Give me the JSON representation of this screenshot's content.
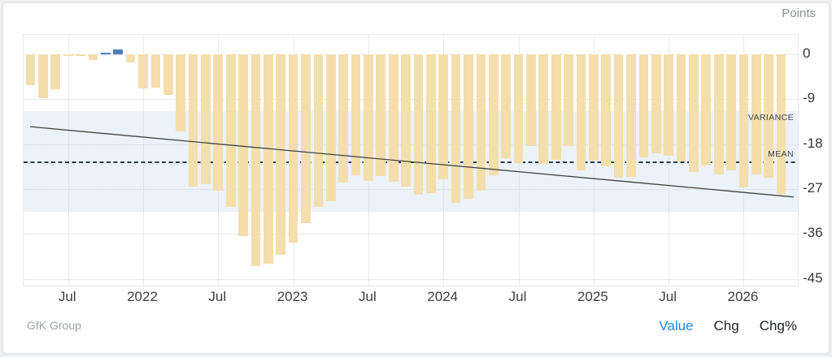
{
  "header": {
    "unit_label": "Points"
  },
  "footer": {
    "source": "GfK Group",
    "views": [
      {
        "label": "Value",
        "active": true
      },
      {
        "label": "Chg",
        "active": false
      },
      {
        "label": "Chg%",
        "active": false
      }
    ]
  },
  "colors": {
    "bar_negative": "#f4deac",
    "bar_positive": "#4d80bd",
    "variance_band": "#ebf2f9",
    "mean_line": "#2b3a50",
    "trend_line": "#424242",
    "active_view_blue": "#1e87f0",
    "axis_text": "#33363a",
    "muted_text": "#8d9093"
  },
  "chart_data": {
    "type": "bar",
    "title": "",
    "unit": "Points",
    "x": [
      "Apr 2021",
      "May 2021",
      "Jun 2021",
      "Jul 2021",
      "Aug 2021",
      "Sep 2021",
      "Oct 2021",
      "Nov 2021",
      "Dec 2021",
      "Jan 2022",
      "Feb 2022",
      "Mar 2022",
      "Apr 2022",
      "May 2022",
      "Jun 2022",
      "Jul 2022",
      "Aug 2022",
      "Sep 2022",
      "Oct 2022",
      "Nov 2022",
      "Dec 2022",
      "Jan 2023",
      "Feb 2023",
      "Mar 2023",
      "Apr 2023",
      "May 2023",
      "Jun 2023",
      "Jul 2023",
      "Aug 2023",
      "Sep 2023",
      "Oct 2023",
      "Nov 2023",
      "Dec 2023",
      "Jan 2024",
      "Feb 2024",
      "Mar 2024",
      "Apr 2024",
      "May 2024",
      "Jun 2024",
      "Jul 2024",
      "Aug 2024",
      "Sep 2024",
      "Oct 2024",
      "Nov 2024",
      "Dec 2024",
      "Jan 2025",
      "Feb 2025",
      "Mar 2025",
      "Apr 2025",
      "May 2025",
      "Jun 2025",
      "Jul 2025",
      "Aug 2025",
      "Sep 2025",
      "Oct 2025",
      "Nov 2025",
      "Dec 2025",
      "Jan 2026",
      "Feb 2026",
      "Mar 2026",
      "Apr 2026"
    ],
    "values": [
      -6.1,
      -8.8,
      -7.0,
      -0.3,
      -0.4,
      -1.2,
      0.3,
      0.9,
      -1.6,
      -6.8,
      -6.7,
      -8.1,
      -15.5,
      -26.5,
      -26.0,
      -27.4,
      -30.6,
      -36.5,
      -42.5,
      -41.9,
      -40.2,
      -37.8,
      -33.9,
      -30.5,
      -29.5,
      -25.7,
      -24.2,
      -25.4,
      -24.4,
      -25.6,
      -26.5,
      -28.1,
      -27.8,
      -25.1,
      -29.7,
      -29.0,
      -27.4,
      -24.2,
      -20.9,
      -21.8,
      -18.4,
      -22.0,
      -21.2,
      -18.3,
      -23.3,
      -21.3,
      -22.4,
      -24.7,
      -24.5,
      -20.6,
      -19.9,
      -20.3,
      -21.5,
      -23.6,
      -22.3,
      -24.1,
      -23.2,
      -26.7,
      -24.1,
      -24.8,
      -27.9
    ],
    "x_tick_labels": [
      {
        "label": "Jul",
        "index": 3
      },
      {
        "label": "2022",
        "index": 9
      },
      {
        "label": "Jul",
        "index": 15
      },
      {
        "label": "2023",
        "index": 21
      },
      {
        "label": "Jul",
        "index": 27
      },
      {
        "label": "2024",
        "index": 33
      },
      {
        "label": "Jul",
        "index": 39
      },
      {
        "label": "2025",
        "index": 45
      },
      {
        "label": "Jul",
        "index": 51
      },
      {
        "label": "2026",
        "index": 57
      }
    ],
    "y_ticks": [
      "0",
      "-9",
      "-18",
      "-27",
      "-36",
      "-45"
    ],
    "y_tick_values": [
      0,
      -9,
      -18,
      -27,
      -36,
      -45
    ],
    "ylim": [
      3.9,
      -46.7
    ],
    "ylabel": "Points",
    "xlabel": "",
    "grid": "dotted",
    "legend_position": "none",
    "mean": -21.6,
    "mean_label": "MEAN",
    "variance_band": {
      "top": -11.4,
      "bottom": -31.6,
      "label": "VARIANCE"
    },
    "trend_line": {
      "start_value": -14.5,
      "end_value": -28.6
    }
  }
}
